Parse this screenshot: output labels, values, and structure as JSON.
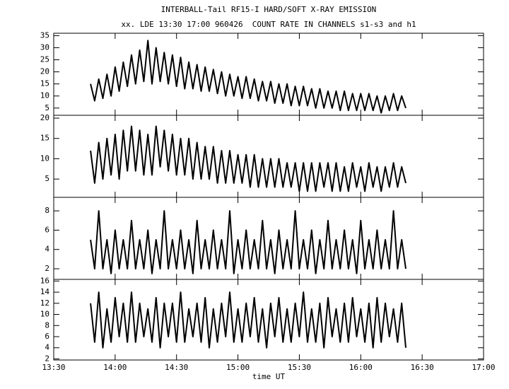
{
  "title": "INTERBALL-Tail RF15-I HARD/SOFT X-RAY EMISSION",
  "subtitle": "xx. LDE 13:30 17:00 960426  COUNT RATE IN CHANNELS s1-s3 and h1",
  "xlabel": "time UT",
  "xlim": [
    810,
    1020
  ],
  "xticks": [
    {
      "value": 810,
      "label": "13:30"
    },
    {
      "value": 840,
      "label": "14:00"
    },
    {
      "value": 870,
      "label": "14:30"
    },
    {
      "value": 900,
      "label": "15:00"
    },
    {
      "value": 930,
      "label": "15:30"
    },
    {
      "value": 960,
      "label": "16:00"
    },
    {
      "value": 990,
      "label": "16:30"
    },
    {
      "value": 1020,
      "label": "17:00"
    }
  ],
  "x": [
    828,
    830,
    832,
    834,
    836,
    838,
    840,
    842,
    844,
    846,
    848,
    850,
    852,
    854,
    856,
    858,
    860,
    862,
    864,
    866,
    868,
    870,
    872,
    874,
    876,
    878,
    880,
    882,
    884,
    886,
    888,
    890,
    892,
    894,
    896,
    898,
    900,
    902,
    904,
    906,
    908,
    910,
    912,
    914,
    916,
    918,
    920,
    922,
    924,
    926,
    928,
    930,
    932,
    934,
    936,
    938,
    940,
    942,
    944,
    946,
    948,
    950,
    952,
    954,
    956,
    958,
    960,
    962,
    964,
    966,
    968,
    970,
    972,
    974,
    976,
    978,
    980,
    982
  ],
  "chart_data": [
    {
      "type": "line",
      "ylim": [
        2,
        36
      ],
      "yticks": [
        5,
        10,
        15,
        20,
        25,
        30,
        35
      ],
      "values": [
        15,
        8,
        17,
        9,
        19,
        10,
        22,
        12,
        24,
        14,
        27,
        15,
        29,
        16,
        33,
        15,
        30,
        16,
        28,
        15,
        27,
        14,
        26,
        13,
        24,
        13,
        23,
        12,
        22,
        12,
        21,
        11,
        20,
        10,
        19,
        10,
        18,
        9,
        18,
        9,
        17,
        8,
        16,
        8,
        16,
        7,
        15,
        7,
        15,
        6,
        14,
        6,
        14,
        6,
        13,
        5,
        13,
        5,
        12,
        5,
        12,
        4,
        12,
        4,
        11,
        4,
        11,
        4,
        11,
        4,
        10,
        3,
        10,
        4,
        11,
        4,
        10,
        5
      ]
    },
    {
      "type": "line",
      "ylim": [
        0.5,
        20.7
      ],
      "yticks": [
        5,
        10,
        15,
        20
      ],
      "values": [
        12,
        4,
        14,
        5,
        15,
        6,
        16,
        5,
        17,
        7,
        18,
        7,
        17,
        6,
        16,
        6,
        18,
        8,
        17,
        7,
        16,
        6,
        15,
        6,
        15,
        5,
        14,
        5,
        13,
        5,
        13,
        4,
        12,
        4,
        12,
        4,
        11,
        4,
        11,
        3,
        11,
        3,
        10,
        3,
        10,
        3,
        10,
        3,
        9,
        3,
        9,
        2,
        9,
        2,
        9,
        2,
        9,
        3,
        9,
        2,
        9,
        2,
        8,
        2,
        9,
        3,
        8,
        2,
        9,
        3,
        8,
        2,
        8,
        3,
        9,
        3,
        8,
        4
      ]
    },
    {
      "type": "line",
      "ylim": [
        0.9,
        9.4
      ],
      "yticks": [
        2,
        4,
        6,
        8
      ],
      "values": [
        5,
        2,
        8,
        2,
        5,
        1.5,
        6,
        2,
        5,
        2,
        7,
        2,
        5,
        2,
        6,
        1.5,
        5,
        2,
        8,
        2,
        5,
        2,
        6,
        2,
        5,
        1.5,
        7,
        2,
        5,
        2,
        6,
        2,
        5,
        2,
        8,
        1.5,
        5,
        2,
        6,
        2,
        5,
        2,
        7,
        2,
        5,
        1.5,
        6,
        2,
        5,
        2,
        8,
        2,
        5,
        2,
        6,
        1.5,
        5,
        2,
        7,
        2,
        5,
        2,
        6,
        2,
        5,
        1.5,
        7,
        2,
        5,
        2,
        6,
        2,
        5,
        2,
        8,
        2,
        5,
        2
      ]
    },
    {
      "type": "line",
      "ylim": [
        1.8,
        16.3
      ],
      "yticks": [
        2,
        4,
        6,
        8,
        10,
        12,
        14,
        16
      ],
      "values": [
        12,
        5,
        14,
        4,
        11,
        5,
        13,
        6,
        12,
        5,
        14,
        5,
        12,
        6,
        11,
        5,
        13,
        4,
        12,
        6,
        12,
        5,
        14,
        5,
        11,
        6,
        12,
        5,
        13,
        4,
        11,
        5,
        12,
        6,
        14,
        5,
        11,
        5,
        12,
        6,
        13,
        5,
        11,
        4,
        12,
        6,
        13,
        5,
        11,
        5,
        12,
        6,
        14,
        5,
        11,
        5,
        12,
        4,
        13,
        6,
        11,
        5,
        12,
        5,
        13,
        6,
        11,
        5,
        12,
        4,
        13,
        5,
        12,
        6,
        11,
        5,
        12,
        4
      ]
    }
  ]
}
